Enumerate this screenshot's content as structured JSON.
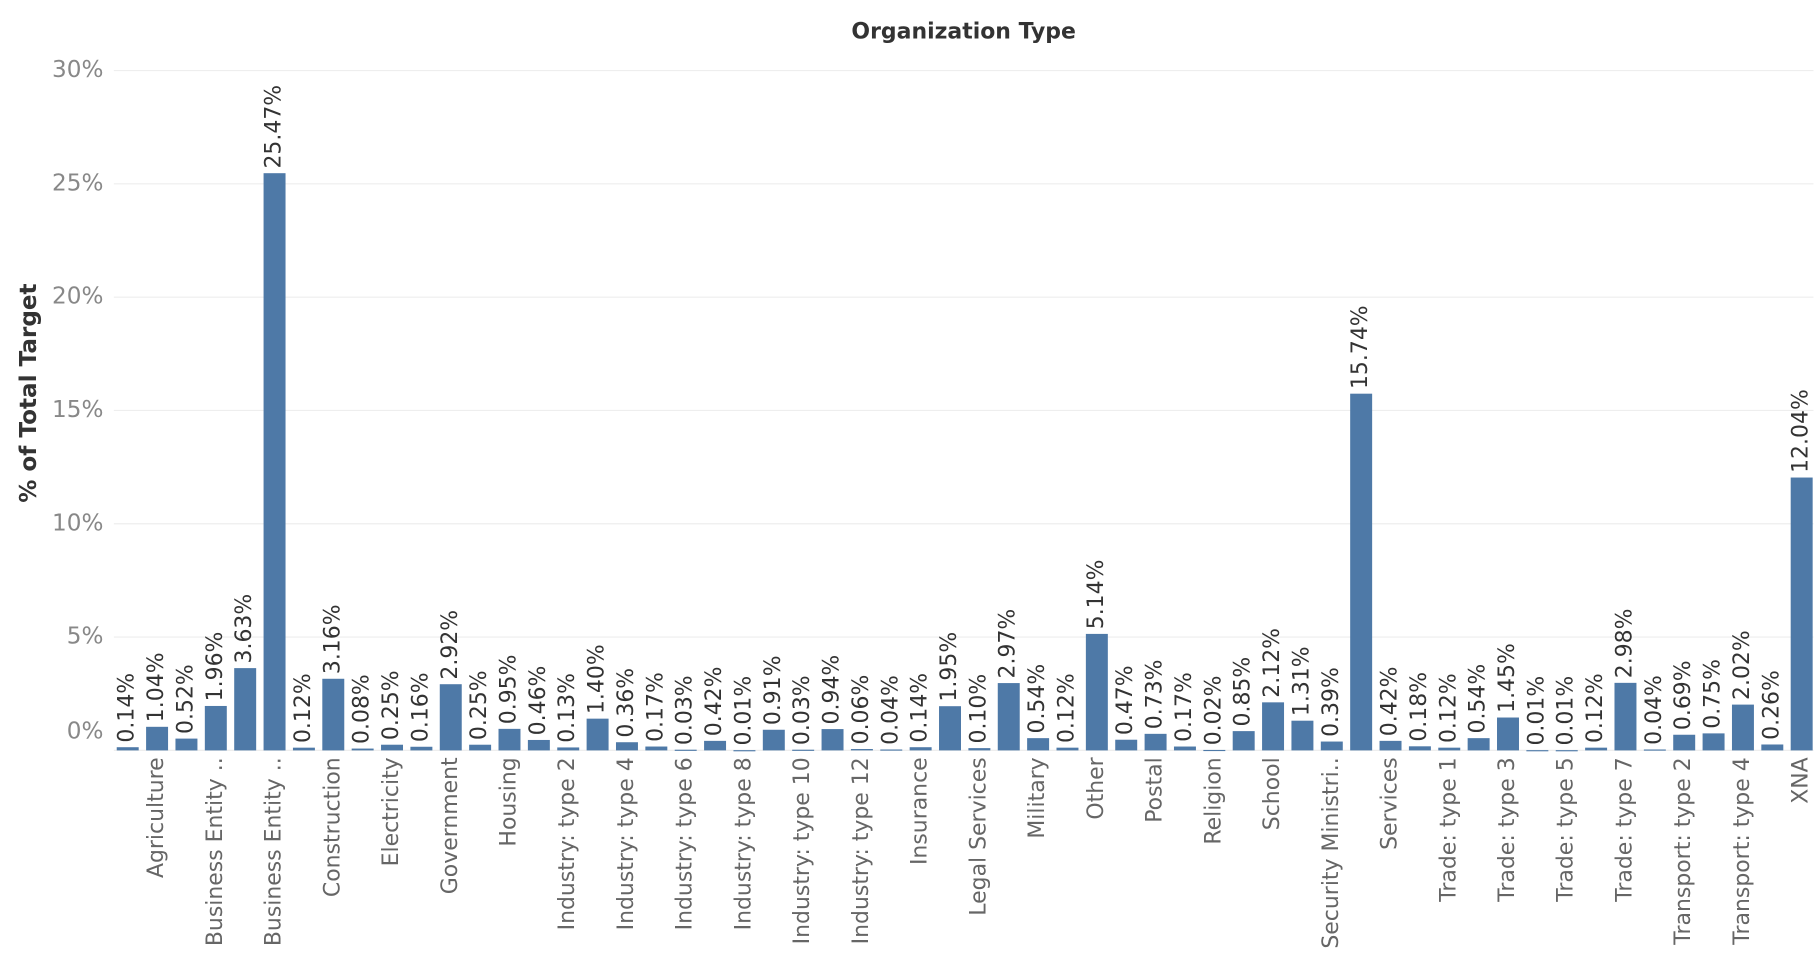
{
  "chart_data": {
    "type": "bar",
    "title": "Organization Type",
    "y_label": "% of Total Target",
    "categories": [
      null,
      "Agriculture",
      null,
      "Business Entity ..",
      null,
      "Business Entity ..",
      null,
      "Construction",
      null,
      "Electricity",
      null,
      "Government",
      null,
      "Housing",
      null,
      "Industry: type 2",
      null,
      "Industry: type 4",
      null,
      "Industry: type 6",
      null,
      "Industry: type 8",
      null,
      "Industry: type 10",
      null,
      "Industry: type 12",
      null,
      "Insurance",
      null,
      "Legal Services",
      null,
      "Military",
      null,
      "Other",
      null,
      "Postal",
      null,
      "Religion",
      null,
      "School",
      null,
      "Security Ministri..",
      null,
      "Services",
      null,
      "Trade: type 1",
      null,
      "Trade: type 3",
      null,
      "Trade: type 5",
      null,
      "Trade: type 7",
      null,
      "Transport: type 2",
      null,
      "Transport: type 4",
      null,
      "XNA"
    ],
    "values": [
      0.14,
      1.04,
      0.52,
      1.96,
      3.63,
      25.47,
      0.12,
      3.16,
      0.08,
      0.25,
      0.16,
      2.92,
      0.25,
      0.95,
      0.46,
      0.13,
      1.4,
      0.36,
      0.17,
      0.03,
      0.42,
      0.01,
      0.91,
      0.03,
      0.94,
      0.06,
      0.04,
      0.14,
      1.95,
      0.1,
      2.97,
      0.54,
      0.12,
      5.14,
      0.47,
      0.73,
      0.17,
      0.02,
      0.85,
      2.12,
      1.31,
      0.39,
      15.74,
      0.42,
      0.18,
      0.12,
      0.54,
      1.45,
      0.01,
      0.01,
      0.12,
      2.98,
      0.04,
      0.69,
      0.75,
      2.02,
      0.26,
      12.04
    ],
    "value_labels": [
      "0.14%",
      "1.04%",
      "0.52%",
      "1.96%",
      "3.63%",
      "25.47%",
      "0.12%",
      "3.16%",
      "0.08%",
      "0.25%",
      "0.16%",
      "2.92%",
      "0.25%",
      "0.95%",
      "0.46%",
      "0.13%",
      "1.40%",
      "0.36%",
      "0.17%",
      "0.03%",
      "0.42%",
      "0.01%",
      "0.91%",
      "0.03%",
      "0.94%",
      "0.06%",
      "0.04%",
      "0.14%",
      "1.95%",
      "0.10%",
      "2.97%",
      "0.54%",
      "0.12%",
      "5.14%",
      "0.47%",
      "0.73%",
      "0.17%",
      "0.02%",
      "0.85%",
      "2.12%",
      "1.31%",
      "0.39%",
      "15.74%",
      "0.42%",
      "0.18%",
      "0.12%",
      "0.54%",
      "1.45%",
      "0.01%",
      "0.01%",
      "0.12%",
      "2.98%",
      "0.04%",
      "0.69%",
      "0.75%",
      "2.02%",
      "0.26%",
      "12.04%"
    ],
    "color": "#4e79a7",
    "ylim": [
      0,
      31
    ],
    "yticks": [
      {
        "value": 0,
        "label": "0%"
      },
      {
        "value": 5,
        "label": "5%"
      },
      {
        "value": 10,
        "label": "10%"
      },
      {
        "value": 15,
        "label": "15%"
      },
      {
        "value": 20,
        "label": "20%"
      },
      {
        "value": 25,
        "label": "25%"
      },
      {
        "value": 30,
        "label": "30%"
      }
    ],
    "grid": true
  }
}
